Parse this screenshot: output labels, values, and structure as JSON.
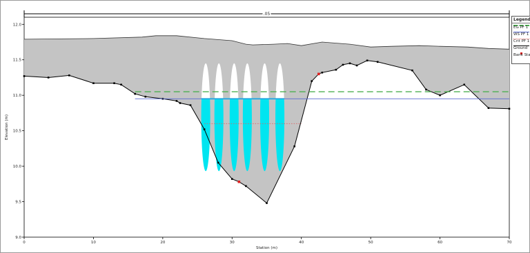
{
  "chart_data": {
    "type": "area",
    "title": "",
    "xlabel": "Station (m)",
    "ylabel": "Elevation (m)",
    "xlim": [
      0,
      70
    ],
    "ylim": [
      9.0,
      12.1
    ],
    "xticks": [
      0,
      10,
      20,
      30,
      40,
      50,
      60,
      70
    ],
    "xtick_labels": [
      "0",
      "10",
      "20",
      "30",
      "40",
      "50",
      "60",
      "70"
    ],
    "yticks": [
      9.0,
      9.5,
      10.0,
      10.5,
      11.0,
      11.5,
      12.0
    ],
    "ytick_labels": [
      "9.0",
      "9.5",
      "10.0",
      "10.5",
      "11.0",
      "11.5",
      "12.0"
    ],
    "grid": false,
    "top_bracket": {
      "x_start": 0,
      "x_end": 70,
      "label": ".05"
    },
    "legend": {
      "title": "Legend",
      "position": "top-right",
      "items": [
        {
          "label": "EG PF 1",
          "color": "#4caf50",
          "style": "dashed"
        },
        {
          "label": "WS PF 1",
          "color": "#5a6ad0",
          "style": "solid"
        },
        {
          "label": "Crit PF 1",
          "color": "#e06060",
          "style": "dotted"
        },
        {
          "label": "Ground",
          "color": "#000000",
          "style": "line-marker"
        },
        {
          "label": "Bank Sta",
          "color": "#e02020",
          "style": "marker"
        }
      ]
    },
    "ground": {
      "x": [
        0,
        3.5,
        6.5,
        10,
        13,
        14,
        16,
        17.5,
        20,
        22,
        22.5,
        24,
        26,
        28,
        30,
        31,
        32,
        35,
        39,
        41.5,
        42.5,
        43,
        45,
        46,
        47,
        48,
        49.5,
        51,
        56,
        58,
        60,
        63.5,
        67,
        70
      ],
      "y": [
        11.27,
        11.25,
        11.28,
        11.17,
        11.17,
        11.15,
        11.02,
        10.98,
        10.95,
        10.92,
        10.89,
        10.86,
        10.52,
        10.05,
        9.82,
        9.78,
        9.72,
        9.48,
        10.28,
        11.2,
        11.3,
        11.32,
        11.36,
        11.43,
        11.45,
        11.42,
        11.49,
        11.47,
        11.35,
        11.08,
        11.0,
        11.15,
        10.82,
        10.81
      ]
    },
    "top_of_road": {
      "x": [
        0,
        10,
        17,
        19,
        22,
        26,
        30,
        32,
        33,
        36,
        38,
        40,
        43,
        47,
        50,
        53,
        57,
        60,
        64,
        67,
        70
      ],
      "y": [
        11.79,
        11.8,
        11.82,
        11.84,
        11.84,
        11.8,
        11.77,
        11.72,
        11.71,
        11.72,
        11.73,
        11.7,
        11.75,
        11.72,
        11.68,
        11.69,
        11.7,
        11.69,
        11.68,
        11.66,
        11.65
      ]
    },
    "bank_stations_x": [
      31,
      42.5
    ],
    "eg_pf1": {
      "x": [
        16,
        70
      ],
      "y": [
        11.05,
        11.05
      ]
    },
    "ws_pf1": {
      "x": [
        16,
        70
      ],
      "y": [
        10.95,
        10.95
      ]
    },
    "crit_pf1": {
      "x": [
        26,
        40
      ],
      "y": [
        10.6,
        10.6
      ]
    },
    "culvert_barrels": {
      "count": 6,
      "x_centers": [
        26.2,
        28.1,
        30.3,
        32.2,
        34.7,
        36.9
      ],
      "width": 1.3,
      "y_bottom": 9.93,
      "y_top": 11.45
    },
    "fill_colors": {
      "embankment": "#c4c4c4",
      "water": "#00e5f0",
      "barrel_air": "#ffffff"
    }
  }
}
